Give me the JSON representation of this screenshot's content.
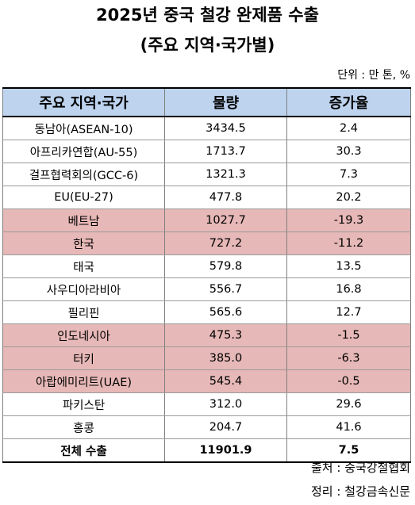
{
  "title_line1": "2025년 중국 철강 완제품 수출",
  "title_line2": "(주요 지역·국가별)",
  "unit": "단위 : 만 톤, %",
  "headers": [
    "주요 지역·국가",
    "물량",
    "증가율"
  ],
  "rows": [
    {
      "region": "동남아(ASEAN-10)",
      "volume": "3434.5",
      "growth": "2.4",
      "highlight": false
    },
    {
      "region": "아프리카연합(AU-55)",
      "volume": "1713.7",
      "growth": "30.3",
      "highlight": false
    },
    {
      "region": "걸프협력회의(GCC-6)",
      "volume": "1321.3",
      "growth": "7.3",
      "highlight": false
    },
    {
      "region": "EU(EU-27)",
      "volume": "477.8",
      "growth": "20.2",
      "highlight": false
    },
    {
      "region": "베트남",
      "volume": "1027.7",
      "growth": "-19.3",
      "highlight": true
    },
    {
      "region": "한국",
      "volume": "727.2",
      "growth": "-11.2",
      "highlight": true
    },
    {
      "region": "태국",
      "volume": "579.8",
      "growth": "13.5",
      "highlight": false
    },
    {
      "region": "사우디아라비아",
      "volume": "556.7",
      "growth": "16.8",
      "highlight": false
    },
    {
      "region": "필리핀",
      "volume": "565.6",
      "growth": "12.7",
      "highlight": false
    },
    {
      "region": "인도네시아",
      "volume": "475.3",
      "growth": "-1.5",
      "highlight": true
    },
    {
      "region": "터키",
      "volume": "385.0",
      "growth": "-6.3",
      "highlight": true
    },
    {
      "region": "아랍에미리트(UAE)",
      "volume": "545.4",
      "growth": "-0.5",
      "highlight": true
    },
    {
      "region": "파키스탄",
      "volume": "312.0",
      "growth": "29.6",
      "highlight": false
    },
    {
      "region": "홍콩",
      "volume": "204.7",
      "growth": "41.6",
      "highlight": false
    }
  ],
  "total": {
    "region": "전체 수출",
    "volume": "11901.9",
    "growth": "7.5"
  },
  "source_line": "출처 : 중국강철협회",
  "editor_line": "정리 : 철강금속신문",
  "colors": {
    "header_bg": "#bdd3ee",
    "highlight_bg": "#e6b8b7"
  }
}
